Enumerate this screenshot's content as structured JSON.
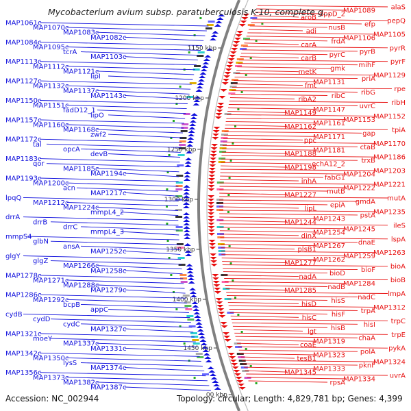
{
  "title": "Mycobacterium avium subsp. paratuberculosis K-10, complete g...",
  "footer": {
    "accession": "Accession: NC_002944",
    "summary": "Topology: circular; Length: 4,829,781 bp; Genes: 4,399"
  },
  "colors": {
    "left_genes": "#1010dd",
    "right_genes": "#e81010",
    "backbone": "#808080",
    "ticks": "#22aa22"
  },
  "ticks": [
    "1150 kbp",
    "1200 kbp",
    "1250 kbp",
    "1300 kbp",
    "1350 kbp",
    "1400 kbp",
    "1450 kbp",
    "00 kbp"
  ],
  "left_labels": [
    "MAP1061c",
    "MAP1070c",
    "MAP1083c",
    "MAP1082c",
    "MAP1084c",
    "MAP1095c",
    "tcrA",
    "MAP1103c",
    "MAP1113c",
    "MAP1112c",
    "MAP1121c",
    "lipI",
    "MAP1127c",
    "MAP1132c",
    "MAP1137c",
    "MAP1143c",
    "MAP1150c",
    "MAP1151c",
    "fadD12_1",
    "lipO",
    "MAP1157c",
    "MAP1160c",
    "MAP1168c",
    "zwf2",
    "MAP1172c",
    "tal",
    "opcA",
    "devB",
    "MAP1183c",
    "qor",
    "MAP1185c",
    "MAP1194c",
    "MAP1193c",
    "MAP1200c",
    "acn",
    "MAP1217c",
    "lpqQ",
    "MAP1212c",
    "MAP1224c",
    "mmpL4_2",
    "drrA",
    "drrB",
    "drrC",
    "mmpL4_3",
    "mmpS4",
    "glbN",
    "ansA",
    "MAP1252c",
    "glgY",
    "glgZ",
    "MAP1266c",
    "MAP1258c",
    "MAP1278c",
    "MAP1271c",
    "MAP1288c",
    "MAP1279c",
    "MAP1286c",
    "MAP1292c",
    "bcpB",
    "appC",
    "cydB",
    "cydD",
    "cydC",
    "MAP1327c",
    "MAP1321c",
    "moeY",
    "MAP1337c",
    "MAP1331c",
    "MAP1342c",
    "MAP1350c",
    "lysS",
    "MAP1374c",
    "MAP1356c",
    "MAP1373c",
    "MAP1382c",
    "MAP1387c"
  ],
  "right_labels": [
    "alaS",
    "MAP1089",
    "dppD_2",
    "aroB",
    "pepQ",
    "efp",
    "nusB",
    "adi",
    "MAP1105",
    "MAP1106",
    "frdA",
    "carA",
    "pyrR",
    "pyrB",
    "pyrC",
    "carB",
    "pyrF",
    "mihF",
    "gmk",
    "metK",
    "MAP1129",
    "priA",
    "MAP1131",
    "fmt",
    "rpe",
    "ribG",
    "ribC",
    "ribA2",
    "ribH",
    "uvrC",
    "MAP1147",
    "MAP1149",
    "MAP1152",
    "MAP1153",
    "MAP1161",
    "MAP1162",
    "tpiA",
    "gap",
    "MAP1171",
    "ppc",
    "MAP1170",
    "ctaB",
    "MAP1181",
    "MAP1188",
    "MAP1186",
    "trxB",
    "echA12_2",
    "MAP1198",
    "MAP1203",
    "MAP1204",
    "fabG1",
    "inhA",
    "MAP1221",
    "MAP1222",
    "mutB",
    "MAP1227",
    "mutA",
    "gmdA",
    "epiA",
    "lipL",
    "MAP1235",
    "pstA",
    "MAP1243",
    "MAP1244",
    "ileS",
    "MAP1245",
    "MAP1254",
    "dinX",
    "lspA",
    "dnaE",
    "MAP1267",
    "plsB1",
    "MAP1263",
    "MAP1259",
    "MAP1262",
    "MAP1277",
    "bioA",
    "bioF",
    "bioD",
    "nadA",
    "bioB",
    "MAP1284",
    "nadB",
    "MAP1285",
    "lmpA",
    "nadC",
    "hisS",
    "hisD",
    "MAP1312",
    "trpA",
    "hisF",
    "hisC",
    "trpC",
    "hisI",
    "hisB",
    "lgt",
    "trpE",
    "chaA",
    "MAP1319",
    "coaE",
    "pykA",
    "polA",
    "MAP1323",
    "tesB1",
    "MAP1324",
    "pknF",
    "MAP1333",
    "MAP1345",
    "uvrA",
    "MAP1334",
    "rpsA"
  ]
}
